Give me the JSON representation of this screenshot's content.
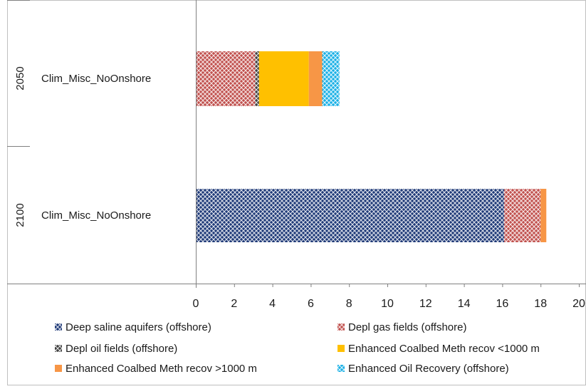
{
  "chart_data": {
    "type": "bar",
    "orientation": "horizontal",
    "stacked": true,
    "title": "",
    "xlabel": "",
    "ylabel": "",
    "xlim": [
      0,
      20
    ],
    "x_ticks": [
      "0",
      "2",
      "4",
      "6",
      "8",
      "10",
      "12",
      "14",
      "16",
      "18",
      "20"
    ],
    "grid": false,
    "legend_position": "bottom",
    "categories": [
      {
        "group": "2050",
        "label": "Clim_Misc_NoOnshore"
      },
      {
        "group": "2100",
        "label": "Clim_Misc_NoOnshore"
      }
    ],
    "series": [
      {
        "name": "Deep saline aquifers (offshore)",
        "color": "#1f3a78",
        "pattern": "crosshatch",
        "values": [
          0,
          16.1
        ]
      },
      {
        "name": "Depl gas fields (offshore)",
        "color": "#c0504d",
        "pattern": "crosshatch",
        "values": [
          3.1,
          1.9
        ]
      },
      {
        "name": "Depl oil fields (offshore)",
        "color": "#404040",
        "pattern": "crosshatch",
        "values": [
          0.2,
          0
        ]
      },
      {
        "name": "Enhanced Coalbed Meth recov <1000 m",
        "color": "#ffc000",
        "pattern": "solid",
        "values": [
          2.6,
          0
        ]
      },
      {
        "name": "Enhanced Coalbed Meth recov >1000 m",
        "color": "#f79646",
        "pattern": "solid",
        "values": [
          0.7,
          0.3
        ]
      },
      {
        "name": "Enhanced Oil Recovery (offshore)",
        "color": "#1ab0e6",
        "pattern": "crosshatch",
        "values": [
          0.9,
          0
        ]
      }
    ]
  }
}
